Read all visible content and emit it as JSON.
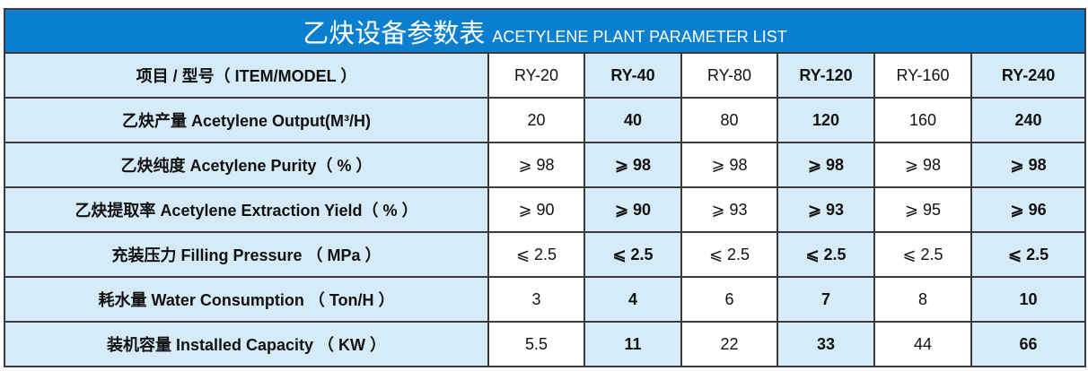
{
  "title": {
    "cn": "乙炔设备参数表",
    "en": "ACETYLENE PLANT PARAMETER LIST"
  },
  "colors": {
    "header_blue": "#0a7fd0",
    "cell_light_blue": "#d5ebf8"
  },
  "rows": [
    {
      "label": "项目 / 型号（ ITEM/MODEL ）",
      "values": [
        "RY-20",
        "RY-40",
        "RY-80",
        "RY-120",
        "RY-160",
        "RY-240"
      ]
    },
    {
      "label": "乙炔产量 Acetylene Output(M³/H)",
      "values": [
        "20",
        "40",
        "80",
        "120",
        "160",
        "240"
      ]
    },
    {
      "label": "乙炔纯度 Acetylene Purity（ % ）",
      "values": [
        "⩾ 98",
        "⩾ 98",
        "⩾ 98",
        "⩾ 98",
        "⩾ 98",
        "⩾ 98"
      ]
    },
    {
      "label": "乙炔提取率 Acetylene Extraction Yield（ % ）",
      "values": [
        "⩾ 90",
        "⩾ 90",
        "⩾ 93",
        "⩾ 93",
        "⩾ 95",
        "⩾ 96"
      ]
    },
    {
      "label": "充装压力 Filling Pressure （ MPa ）",
      "values": [
        "⩽ 2.5",
        "⩽ 2.5",
        "⩽ 2.5",
        "⩽ 2.5",
        "⩽ 2.5",
        "⩽ 2.5"
      ]
    },
    {
      "label": "耗水量 Water Consumption （ Ton/H ）",
      "values": [
        "3",
        "4",
        "6",
        "7",
        "8",
        "10"
      ]
    },
    {
      "label": "装机容量 Installed Capacity （ KW ）",
      "values": [
        "5.5",
        "11",
        "22",
        "33",
        "44",
        "66"
      ]
    }
  ]
}
